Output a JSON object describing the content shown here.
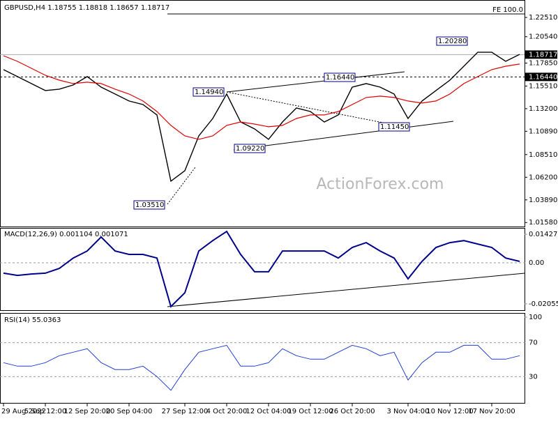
{
  "chart_data": {
    "type": "line",
    "title": "GBPUSD,H4 1.18755 1.18818 1.18657 1.18717",
    "watermark": "ActionForex.com",
    "categories": [
      "29 Aug 2022",
      null,
      null,
      "5 Sep 12:00",
      null,
      null,
      "12 Sep 20:00",
      null,
      null,
      "20 Sep 04:00",
      null,
      null,
      null,
      "27 Sep 12:00",
      null,
      null,
      "4 Oct 20:00",
      null,
      null,
      "12 Oct 04:00",
      null,
      null,
      "19 Oct 12:00",
      null,
      null,
      "26 Oct 20:00",
      null,
      null,
      null,
      "3 Nov 04:00",
      null,
      null,
      "10 Nov 12:00",
      null,
      null,
      "17 Nov 20:00",
      null,
      null
    ],
    "series": [
      {
        "color": "#000000",
        "values": [
          1.1718,
          1.1647,
          1.1576,
          1.1505,
          1.1519,
          1.1562,
          1.1647,
          1.154,
          1.1469,
          1.1398,
          1.1362,
          1.1256,
          1.058,
          1.0687,
          1.1042,
          1.122,
          1.1469,
          1.1184,
          1.1113,
          1.1007,
          1.1184,
          1.1327,
          1.1291,
          1.1184,
          1.1256,
          1.154,
          1.1576,
          1.154,
          1.1469,
          1.122,
          1.1398,
          1.1505,
          1.1611,
          1.1753,
          1.1896,
          1.1896,
          1.1803,
          1.1874
        ]
      },
      {
        "color": "#e00000",
        "values": [
          1.186,
          1.1803,
          1.1732,
          1.1661,
          1.1611,
          1.1576,
          1.159,
          1.1576,
          1.1519,
          1.1469,
          1.1398,
          1.1291,
          1.1149,
          1.1042,
          1.1007,
          1.1042,
          1.1149,
          1.1184,
          1.1163,
          1.1135,
          1.1149,
          1.122,
          1.1256,
          1.1256,
          1.1291,
          1.1362,
          1.1434,
          1.1448,
          1.1434,
          1.1398,
          1.1377,
          1.1398,
          1.1469,
          1.1576,
          1.1647,
          1.1718,
          1.1753,
          1.1775
        ]
      }
    ],
    "ylim": [
      1.0117,
      1.2429
    ],
    "yticks": [
      1.2251,
      1.2054,
      1.1785,
      1.1551,
      1.132,
      1.1089,
      1.0851,
      1.062,
      1.0389,
      1.0158
    ],
    "ytick_labels": [
      "1.22510",
      "1.20540",
      "1.17850",
      "1.15510",
      "1.13200",
      "1.10890",
      "1.08510",
      "1.06200",
      "1.03890",
      "1.01580"
    ],
    "levels": [
      {
        "value": 1.1644,
        "label": "1.16440"
      },
      {
        "value": 1.18717,
        "label": "1.18717"
      }
    ],
    "fe_level": {
      "value": 1.2287,
      "label": "FE 100.0"
    },
    "annotations": [
      "1.03510",
      "1.09220",
      "1.14940",
      "1.16440",
      "1.11450",
      "1.20280"
    ],
    "macd": {
      "title": "MACD(12,26,9) 0.001104 0.001071",
      "color": "#00008b",
      "values": [
        -0.0052,
        -0.0063,
        -0.0056,
        -0.0052,
        -0.0028,
        0.0024,
        0.0059,
        0.0129,
        0.0059,
        0.0042,
        0.0042,
        0.0024,
        -0.0219,
        -0.015,
        0.0059,
        0.0111,
        0.0157,
        0.0042,
        -0.0045,
        -0.0045,
        0.0059,
        0.0059,
        0.0059,
        0.0059,
        0.0024,
        0.0077,
        0.0101,
        0.0059,
        0.0024,
        -0.008,
        0.0007,
        0.0077,
        0.0101,
        0.0111,
        0.0094,
        0.0077,
        0.0024,
        0.0007
      ],
      "ylim": [
        -0.0237,
        0.0171
      ],
      "yticks": [
        0.014278,
        {
          "value": 0,
          "label": "0.00"
        },
        -0.020556
      ]
    },
    "rsi": {
      "title": "RSI(14) 55.0363",
      "color": "#1f3fd0",
      "values": [
        46.5,
        42.4,
        42.4,
        46.5,
        54.7,
        58.8,
        62.9,
        46.5,
        38.4,
        38.4,
        42.4,
        30.2,
        13.9,
        38.4,
        58.8,
        62.9,
        66.9,
        42.4,
        42.4,
        46.5,
        62.9,
        54.7,
        50.6,
        50.6,
        58.8,
        66.9,
        62.9,
        54.7,
        58.8,
        26.1,
        46.5,
        58.8,
        58.8,
        66.9,
        66.9,
        50.6,
        50.6,
        54.7
      ],
      "ylim": [
        0,
        100
      ],
      "yticks": [
        100,
        70,
        30
      ]
    }
  }
}
